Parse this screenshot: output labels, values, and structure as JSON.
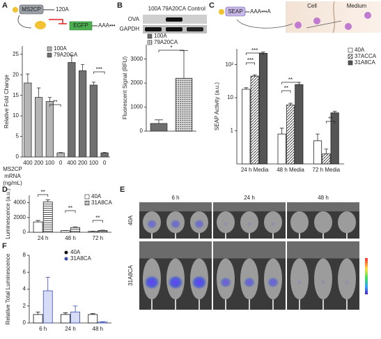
{
  "panels": {
    "labels": [
      "A",
      "B",
      "C",
      "D",
      "E",
      "F"
    ],
    "diagram_a": {
      "gene": "MS2CP",
      "tail": "120A",
      "reporter": "EGFP",
      "reporter_tail": "AAA•••"
    },
    "blot": {
      "lanes": [
        "100A",
        "79A20CA",
        "Control"
      ],
      "rows": [
        "OVA",
        "GAPDH"
      ]
    },
    "diagram_c": {
      "gene": "SEAP",
      "tail": "AAA•••A",
      "cell": "Cell",
      "medium": "Medium"
    },
    "images": {
      "times": [
        "6 h",
        "24 h",
        "48 h"
      ],
      "rows": [
        "40A",
        "31A8CA"
      ]
    }
  },
  "chart_data": [
    {
      "type": "bar",
      "y_label": "Relative Fold Change",
      "x_label": [
        "MS2CP",
        "mRNA",
        "(ng/mL)"
      ],
      "categories": [
        "400",
        "200",
        "100",
        "0",
        "400",
        "200",
        "100",
        "0"
      ],
      "series": [
        {
          "name": "100A",
          "color": "#333333",
          "fill": "#b5b5b5",
          "values": [
            18,
            14.5,
            13.5,
            1,
            null,
            null,
            null,
            null
          ],
          "errors": [
            2.2,
            2.3,
            1,
            0.1,
            null,
            null,
            null,
            null
          ]
        },
        {
          "name": "79A20CA",
          "color": "#333333",
          "fill": "#707070",
          "values": [
            null,
            null,
            null,
            null,
            23,
            21,
            17.5,
            1
          ],
          "errors": [
            null,
            null,
            null,
            null,
            1.8,
            1.5,
            0.7,
            0.1
          ]
        }
      ],
      "ylim": [
        0,
        27
      ],
      "yticks": [
        0,
        5,
        10,
        15,
        20,
        25
      ],
      "annotations": [
        "**",
        "***"
      ]
    },
    {
      "type": "bar",
      "y_label": "Fluorescent Signal (RFU)",
      "categories": [
        null,
        null
      ],
      "series": [
        {
          "name": "100A",
          "color": "#333333",
          "fill": "#6e6e6e",
          "values": [
            320,
            null
          ],
          "errors": [
            150,
            null
          ]
        },
        {
          "name": "79A20CA",
          "color": "#333333",
          "fill": "#bdbdbd",
          "pattern": "dots",
          "values": [
            null,
            2200
          ],
          "errors": [
            null,
            1150
          ]
        }
      ],
      "ylim": [
        0,
        3600
      ],
      "yticks": [
        0,
        1000,
        2000,
        3000
      ],
      "annotations": [
        "*"
      ]
    },
    {
      "type": "bar",
      "y_label": "SEAP Activity (a.u.)",
      "log_scale": true,
      "categories": [
        "24 h Media",
        "48 h Media",
        "72 h Media"
      ],
      "series": [
        {
          "name": "40A",
          "color": "#222222",
          "fill": "#ffffff",
          "values": [
            18,
            0.8,
            0.5
          ],
          "errors": [
            2,
            0.4,
            0.3
          ]
        },
        {
          "name": "37ACCA",
          "color": "#222222",
          "fill": "#ffffff",
          "pattern": "diagonal",
          "values": [
            45,
            6,
            0.2
          ],
          "errors": [
            4,
            0.8,
            0.08
          ]
        },
        {
          "name": "31A8CA",
          "color": "#222222",
          "fill": "#555555",
          "values": [
            220,
            25,
            3.5
          ],
          "errors": [
            20,
            4,
            0.4
          ]
        }
      ],
      "ylim": [
        0.1,
        300
      ],
      "yticks": [
        1,
        10,
        {
          "value": 100,
          "label": "10²"
        }
      ],
      "annotations": [
        "***",
        "***",
        "**",
        "**",
        "**"
      ]
    },
    {
      "type": "bar",
      "y_label": "Luminescence (a.u.)",
      "categories": [
        "24 h",
        "48 h",
        "72 h"
      ],
      "series": [
        {
          "name": "40A",
          "color": "#222222",
          "fill": "#ffffff",
          "values": [
            1400,
            220,
            120
          ],
          "errors": [
            200,
            10,
            30
          ]
        },
        {
          "name": "31A8CA",
          "color": "#222222",
          "fill": "#ffffff",
          "pattern": "horizontal",
          "values": [
            4100,
            650,
            250
          ],
          "errors": [
            300,
            80,
            30
          ]
        }
      ],
      "ylim": [
        0,
        5000
      ],
      "yticks": [
        0,
        2000,
        4000
      ],
      "annotations": [
        "**",
        "**",
        "**"
      ]
    },
    {
      "type": "bar",
      "y_label": "Relative Total Luminescence",
      "legend_marker": "dot",
      "categories": [
        "6 h",
        "24 h",
        "48 h"
      ],
      "series": [
        {
          "name": "40A",
          "color": "#111111",
          "fill": "#ffffff",
          "values": [
            1,
            1,
            1
          ],
          "errors": [
            0.3,
            0.2,
            0.1
          ]
        },
        {
          "name": "31A8CA",
          "color": "#3949ab",
          "fill": "#d6dcf5",
          "values": [
            3.8,
            1.3,
            0.1
          ],
          "errors": [
            1.6,
            0.7,
            0.05
          ]
        }
      ],
      "ylim": [
        0,
        8
      ],
      "yticks": [
        0,
        2,
        4,
        6,
        8
      ]
    }
  ]
}
